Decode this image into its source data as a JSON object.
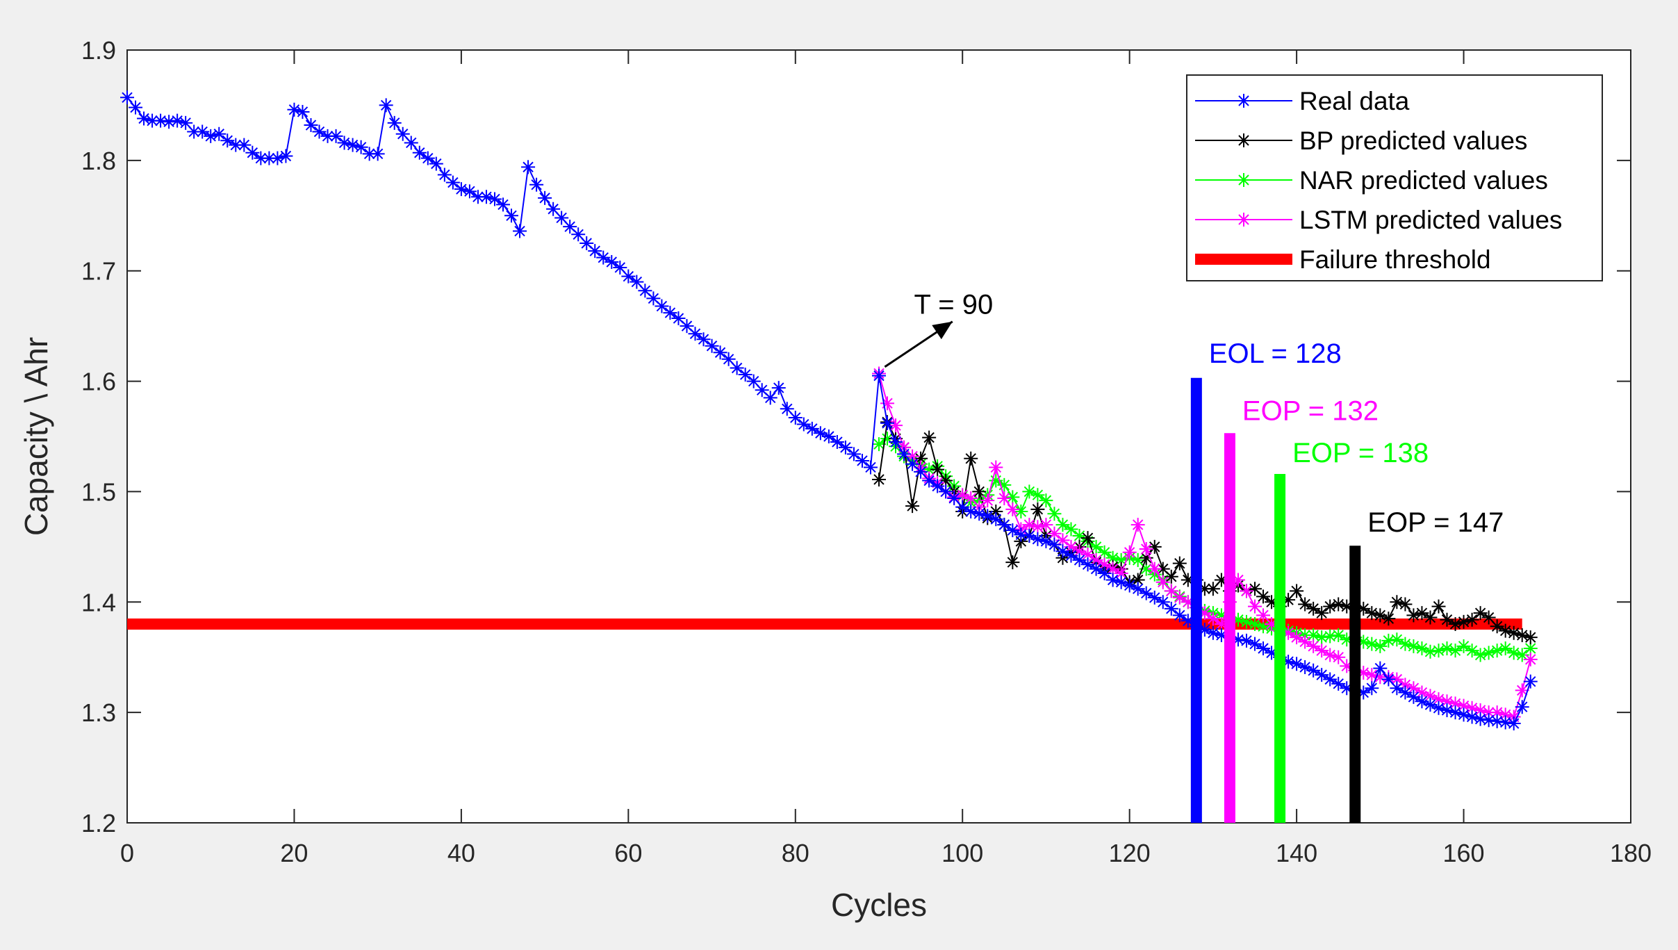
{
  "chart_data": {
    "type": "line",
    "title": "",
    "xlabel": "Cycles",
    "ylabel": "Capacity \\ Ahr",
    "xlim": [
      0,
      180
    ],
    "ylim": [
      1.2,
      1.9
    ],
    "xticks": [
      0,
      20,
      40,
      60,
      80,
      100,
      120,
      140,
      160,
      180
    ],
    "yticks": [
      1.2,
      1.3,
      1.4,
      1.5,
      1.6,
      1.7,
      1.8,
      1.9
    ],
    "xtick_labels": [
      "0",
      "20",
      "40",
      "60",
      "80",
      "100",
      "120",
      "140",
      "160",
      "180"
    ],
    "ytick_labels": [
      "1.2",
      "1.3",
      "1.4",
      "1.5",
      "1.6",
      "1.7",
      "1.8",
      "1.9"
    ],
    "grid": false,
    "legend_position": "top-right",
    "series": [
      {
        "name": "Real data",
        "color": "#0000ff",
        "marker": "asterisk",
        "x": [
          0,
          1,
          2,
          3,
          4,
          5,
          6,
          7,
          8,
          9,
          10,
          11,
          12,
          13,
          14,
          15,
          16,
          17,
          18,
          19,
          20,
          21,
          22,
          23,
          24,
          25,
          26,
          27,
          28,
          29,
          30,
          31,
          32,
          33,
          34,
          35,
          36,
          37,
          38,
          39,
          40,
          41,
          42,
          43,
          44,
          45,
          46,
          47,
          48,
          49,
          50,
          51,
          52,
          53,
          54,
          55,
          56,
          57,
          58,
          59,
          60,
          61,
          62,
          63,
          64,
          65,
          66,
          67,
          68,
          69,
          70,
          71,
          72,
          73,
          74,
          75,
          76,
          77,
          78,
          79,
          80,
          81,
          82,
          83,
          84,
          85,
          86,
          87,
          88,
          89,
          90,
          91,
          92,
          93,
          94,
          95,
          96,
          97,
          98,
          99,
          100,
          101,
          102,
          103,
          104,
          105,
          106,
          107,
          108,
          109,
          110,
          111,
          112,
          113,
          114,
          115,
          116,
          117,
          118,
          119,
          120,
          121,
          122,
          123,
          124,
          125,
          126,
          127,
          128,
          129,
          130,
          131,
          132,
          133,
          134,
          135,
          136,
          137,
          138,
          139,
          140,
          141,
          142,
          143,
          144,
          145,
          146,
          147,
          148,
          149,
          150,
          151,
          152,
          153,
          154,
          155,
          156,
          157,
          158,
          159,
          160,
          161,
          162,
          163,
          164,
          165,
          166,
          167,
          168
        ],
        "values": [
          1.857,
          1.848,
          1.838,
          1.836,
          1.836,
          1.835,
          1.836,
          1.834,
          1.826,
          1.826,
          1.822,
          1.824,
          1.818,
          1.814,
          1.814,
          1.807,
          1.802,
          1.802,
          1.802,
          1.804,
          1.846,
          1.844,
          1.832,
          1.826,
          1.822,
          1.822,
          1.816,
          1.814,
          1.812,
          1.806,
          1.806,
          1.85,
          1.834,
          1.824,
          1.816,
          1.807,
          1.802,
          1.797,
          1.787,
          1.78,
          1.774,
          1.772,
          1.767,
          1.767,
          1.765,
          1.76,
          1.75,
          1.736,
          1.794,
          1.778,
          1.766,
          1.756,
          1.748,
          1.74,
          1.733,
          1.725,
          1.718,
          1.712,
          1.708,
          1.703,
          1.695,
          1.69,
          1.682,
          1.675,
          1.668,
          1.662,
          1.657,
          1.65,
          1.643,
          1.638,
          1.632,
          1.626,
          1.62,
          1.612,
          1.606,
          1.6,
          1.592,
          1.585,
          1.594,
          1.575,
          1.567,
          1.561,
          1.557,
          1.553,
          1.55,
          1.545,
          1.54,
          1.534,
          1.528,
          1.522,
          1.605,
          1.562,
          1.545,
          1.534,
          1.525,
          1.518,
          1.51,
          1.505,
          1.5,
          1.494,
          1.486,
          1.482,
          1.48,
          1.478,
          1.475,
          1.47,
          1.465,
          1.461,
          1.46,
          1.457,
          1.455,
          1.452,
          1.446,
          1.442,
          1.438,
          1.434,
          1.43,
          1.426,
          1.42,
          1.418,
          1.415,
          1.412,
          1.408,
          1.404,
          1.4,
          1.394,
          1.388,
          1.383,
          1.378,
          1.375,
          1.372,
          1.37,
          1.368,
          1.366,
          1.365,
          1.362,
          1.358,
          1.354,
          1.35,
          1.346,
          1.344,
          1.341,
          1.338,
          1.334,
          1.33,
          1.326,
          1.322,
          1.32,
          1.318,
          1.322,
          1.34,
          1.33,
          1.322,
          1.318,
          1.314,
          1.31,
          1.307,
          1.304,
          1.302,
          1.3,
          1.298,
          1.296,
          1.294,
          1.293,
          1.292,
          1.291,
          1.29,
          1.305,
          1.328
        ]
      },
      {
        "name": "BP predicted values",
        "color": "#000000",
        "marker": "asterisk",
        "x": [
          90,
          91,
          92,
          93,
          94,
          95,
          96,
          97,
          98,
          99,
          100,
          101,
          102,
          103,
          104,
          105,
          106,
          107,
          108,
          109,
          110,
          111,
          112,
          113,
          114,
          115,
          116,
          117,
          118,
          119,
          120,
          121,
          122,
          123,
          124,
          125,
          126,
          127,
          128,
          129,
          130,
          131,
          132,
          133,
          134,
          135,
          136,
          137,
          138,
          139,
          140,
          141,
          142,
          143,
          144,
          145,
          146,
          147,
          148,
          149,
          150,
          151,
          152,
          153,
          154,
          155,
          156,
          157,
          158,
          159,
          160,
          161,
          162,
          163,
          164,
          165,
          166,
          167,
          168
        ],
        "values": [
          1.511,
          1.563,
          1.548,
          1.54,
          1.487,
          1.53,
          1.549,
          1.52,
          1.51,
          1.5,
          1.482,
          1.53,
          1.5,
          1.476,
          1.482,
          1.47,
          1.436,
          1.455,
          1.46,
          1.484,
          1.46,
          1.452,
          1.44,
          1.445,
          1.45,
          1.458,
          1.436,
          1.43,
          1.432,
          1.43,
          1.418,
          1.42,
          1.44,
          1.45,
          1.43,
          1.423,
          1.435,
          1.42,
          1.42,
          1.412,
          1.412,
          1.42,
          1.41,
          1.415,
          1.41,
          1.412,
          1.405,
          1.4,
          1.396,
          1.402,
          1.41,
          1.398,
          1.394,
          1.39,
          1.396,
          1.398,
          1.396,
          1.395,
          1.394,
          1.39,
          1.388,
          1.385,
          1.4,
          1.398,
          1.388,
          1.39,
          1.386,
          1.396,
          1.384,
          1.38,
          1.382,
          1.384,
          1.39,
          1.386,
          1.378,
          1.374,
          1.372,
          1.37,
          1.368
        ]
      },
      {
        "name": "NAR predicted values",
        "color": "#00ff00",
        "marker": "asterisk",
        "x": [
          90,
          91,
          92,
          93,
          94,
          95,
          96,
          97,
          98,
          99,
          100,
          101,
          102,
          103,
          104,
          105,
          106,
          107,
          108,
          109,
          110,
          111,
          112,
          113,
          114,
          115,
          116,
          117,
          118,
          119,
          120,
          121,
          122,
          123,
          124,
          125,
          126,
          127,
          128,
          129,
          130,
          131,
          132,
          133,
          134,
          135,
          136,
          137,
          138,
          139,
          140,
          141,
          142,
          143,
          144,
          145,
          146,
          147,
          148,
          149,
          150,
          151,
          152,
          153,
          154,
          155,
          156,
          157,
          158,
          159,
          160,
          161,
          162,
          163,
          164,
          165,
          166,
          167,
          168
        ],
        "values": [
          1.543,
          1.548,
          1.541,
          1.532,
          1.528,
          1.525,
          1.52,
          1.523,
          1.514,
          1.505,
          1.496,
          1.49,
          1.492,
          1.497,
          1.51,
          1.506,
          1.495,
          1.482,
          1.5,
          1.497,
          1.492,
          1.48,
          1.47,
          1.466,
          1.46,
          1.455,
          1.45,
          1.445,
          1.44,
          1.438,
          1.44,
          1.438,
          1.43,
          1.425,
          1.42,
          1.41,
          1.405,
          1.4,
          1.395,
          1.392,
          1.39,
          1.388,
          1.386,
          1.384,
          1.382,
          1.38,
          1.378,
          1.376,
          1.375,
          1.374,
          1.372,
          1.37,
          1.37,
          1.368,
          1.369,
          1.37,
          1.366,
          1.368,
          1.364,
          1.362,
          1.36,
          1.365,
          1.366,
          1.362,
          1.36,
          1.358,
          1.355,
          1.356,
          1.358,
          1.356,
          1.36,
          1.356,
          1.352,
          1.354,
          1.356,
          1.358,
          1.354,
          1.352,
          1.358
        ]
      },
      {
        "name": "LSTM predicted values",
        "color": "#ff00ff",
        "marker": "asterisk",
        "x": [
          90,
          91,
          92,
          93,
          94,
          95,
          96,
          97,
          98,
          99,
          100,
          101,
          102,
          103,
          104,
          105,
          106,
          107,
          108,
          109,
          110,
          111,
          112,
          113,
          114,
          115,
          116,
          117,
          118,
          119,
          120,
          121,
          122,
          123,
          124,
          125,
          126,
          127,
          128,
          129,
          130,
          131,
          132,
          133,
          134,
          135,
          136,
          137,
          138,
          139,
          140,
          141,
          142,
          143,
          144,
          145,
          146,
          147,
          148,
          149,
          150,
          151,
          152,
          153,
          154,
          155,
          156,
          157,
          158,
          159,
          160,
          161,
          162,
          163,
          164,
          165,
          166,
          167,
          168
        ],
        "values": [
          1.607,
          1.58,
          1.56,
          1.54,
          1.532,
          1.522,
          1.512,
          1.508,
          1.5,
          1.495,
          1.497,
          1.494,
          1.486,
          1.492,
          1.522,
          1.494,
          1.484,
          1.466,
          1.47,
          1.468,
          1.47,
          1.462,
          1.456,
          1.45,
          1.446,
          1.443,
          1.438,
          1.434,
          1.43,
          1.426,
          1.445,
          1.47,
          1.448,
          1.43,
          1.418,
          1.41,
          1.404,
          1.4,
          1.395,
          1.39,
          1.385,
          1.38,
          1.4,
          1.42,
          1.41,
          1.396,
          1.388,
          1.38,
          1.374,
          1.372,
          1.368,
          1.364,
          1.36,
          1.356,
          1.352,
          1.35,
          1.342,
          1.338,
          1.336,
          1.334,
          1.332,
          1.332,
          1.33,
          1.325,
          1.322,
          1.318,
          1.315,
          1.312,
          1.31,
          1.308,
          1.306,
          1.304,
          1.302,
          1.3,
          1.3,
          1.298,
          1.296,
          1.32,
          1.348
        ]
      }
    ],
    "threshold": {
      "name": "Failure threshold",
      "color": "#ff0000",
      "y": 1.38,
      "x_start": 0,
      "x_end": 167
    },
    "vertical_markers": [
      {
        "label": "EOL = 128",
        "x": 128,
        "y_top": 1.603,
        "color": "#0000ff",
        "label_y": 1.625
      },
      {
        "label": "EOP = 132",
        "x": 132,
        "y_top": 1.553,
        "color": "#ff00ff",
        "label_y": 1.573
      },
      {
        "label": "EOP = 138",
        "x": 138,
        "y_top": 1.516,
        "color": "#00ff00",
        "label_y": 1.535
      },
      {
        "label": "EOP = 147",
        "x": 147,
        "y_top": 1.451,
        "color": "#000000",
        "label_y": 1.472
      }
    ],
    "annotation": {
      "label": "T = 90",
      "arrow_from": {
        "x": 90.7,
        "y": 1.613
      },
      "arrow_to": {
        "x": 98.8,
        "y": 1.654
      },
      "label_x": 94.2,
      "label_y": 1.67
    },
    "legend_entries": [
      "Real data",
      "BP predicted values",
      "NAR predicted values",
      "LSTM predicted values",
      "Failure threshold"
    ]
  }
}
